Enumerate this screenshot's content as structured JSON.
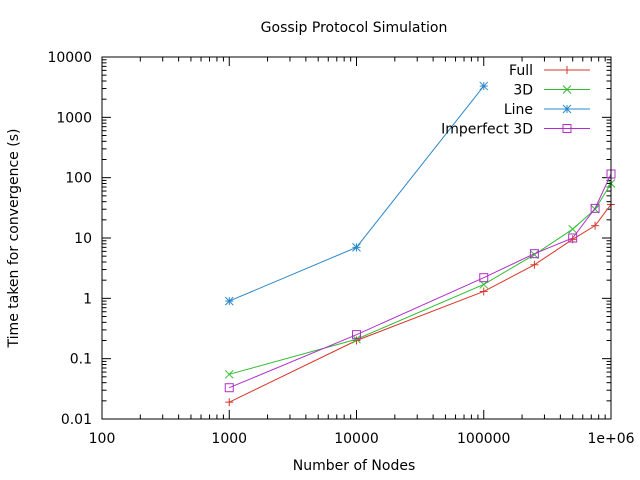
{
  "chart_data": {
    "type": "line",
    "title": "Gossip Protocol Simulation",
    "xlabel": "Number of Nodes",
    "ylabel": "Time taken for convergence (s)",
    "xscale": "log",
    "yscale": "log",
    "xlim": [
      100,
      1000000
    ],
    "ylim": [
      0.01,
      10000
    ],
    "x_ticks": [
      {
        "value": 100,
        "label": "100"
      },
      {
        "value": 1000,
        "label": "1000"
      },
      {
        "value": 10000,
        "label": "10000"
      },
      {
        "value": 100000,
        "label": "100000"
      },
      {
        "value": 1000000,
        "label": "1e+06"
      }
    ],
    "y_ticks": [
      {
        "value": 0.01,
        "label": "0.01"
      },
      {
        "value": 0.1,
        "label": "0.1"
      },
      {
        "value": 1,
        "label": "1"
      },
      {
        "value": 10,
        "label": "10"
      },
      {
        "value": 100,
        "label": "100"
      },
      {
        "value": 1000,
        "label": "1000"
      },
      {
        "value": 10000,
        "label": "10000"
      }
    ],
    "grid": false,
    "legend_position": "top-right",
    "series": [
      {
        "name": "Full",
        "color": "#d8352a",
        "marker": "plus",
        "x": [
          1000,
          10000,
          100000,
          250000,
          500000,
          750000,
          1000000
        ],
        "y": [
          0.019,
          0.2,
          1.3,
          3.6,
          9.5,
          16,
          36
        ]
      },
      {
        "name": "3D",
        "color": "#2fbd2f",
        "marker": "cross",
        "x": [
          1000,
          10000,
          100000,
          250000,
          500000,
          750000,
          1000000
        ],
        "y": [
          0.055,
          0.21,
          1.7,
          5.3,
          14,
          30,
          80
        ]
      },
      {
        "name": "Line",
        "color": "#2b87c9",
        "marker": "star",
        "x": [
          1000,
          10000,
          100000
        ],
        "y": [
          0.9,
          7,
          3300
        ]
      },
      {
        "name": "Imperfect 3D",
        "color": "#b02fc9",
        "marker": "square",
        "x": [
          1000,
          10000,
          100000,
          250000,
          500000,
          750000,
          1000000
        ],
        "y": [
          0.033,
          0.25,
          2.2,
          5.5,
          10,
          31,
          115
        ]
      }
    ]
  }
}
